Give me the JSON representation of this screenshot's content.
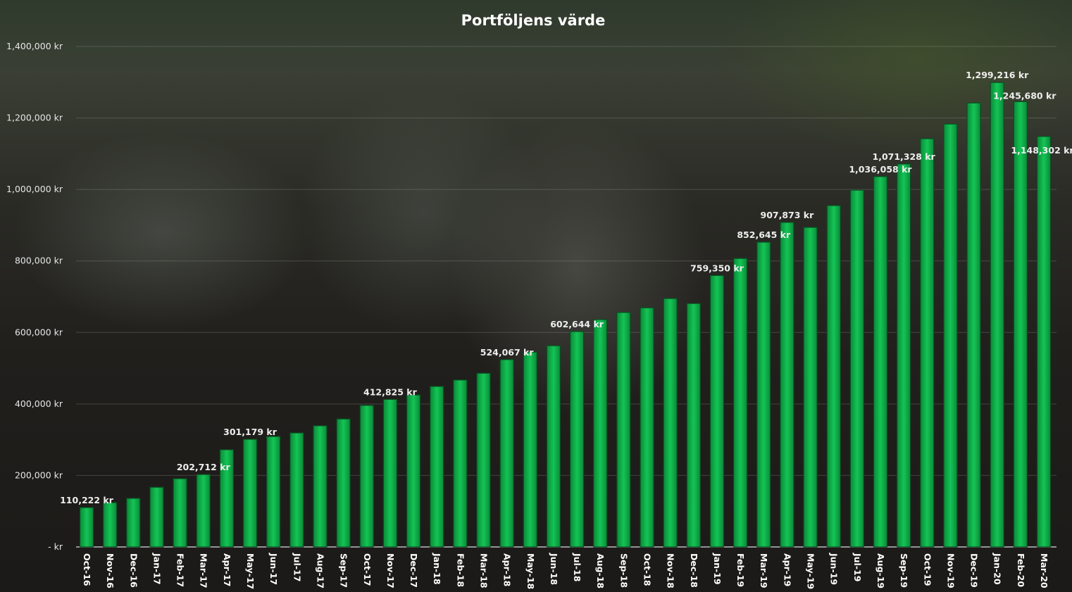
{
  "chart_data": {
    "type": "bar",
    "title": "Portföljens värde",
    "xlabel": "",
    "ylabel": "",
    "ylim": [
      0,
      1400000
    ],
    "yticks": [
      0,
      200000,
      400000,
      600000,
      800000,
      1000000,
      1200000,
      1400000
    ],
    "ytick_labels": [
      "- kr",
      "200,000 kr",
      "400,000 kr",
      "600,000 kr",
      "800,000 kr",
      "1,000,000 kr",
      "1,200,000 kr",
      "1,400,000 kr"
    ],
    "grid": true,
    "bar_color": "#0fb04a",
    "categories": [
      "Oct-16",
      "Nov-16",
      "Dec-16",
      "Jan-17",
      "Feb-17",
      "Mar-17",
      "Apr-17",
      "May-17",
      "Jun-17",
      "Jul-17",
      "Aug-17",
      "Sep-17",
      "Oct-17",
      "Nov-17",
      "Dec-17",
      "Jan-18",
      "Feb-18",
      "Mar-18",
      "Apr-18",
      "May-18",
      "Jun-18",
      "Jul-18",
      "Aug-18",
      "Sep-18",
      "Oct-18",
      "Nov-18",
      "Dec-18",
      "Jan-19",
      "Feb-19",
      "Mar-19",
      "Apr-19",
      "May-19",
      "Jun-19",
      "Jul-19",
      "Aug-19",
      "Sep-19",
      "Oct-19",
      "Nov-19",
      "Dec-19",
      "Jan-20",
      "Feb-20",
      "Mar-20"
    ],
    "values": [
      110222,
      124000,
      136000,
      167000,
      191000,
      202712,
      272000,
      301179,
      309000,
      319000,
      339000,
      358000,
      396000,
      412825,
      425000,
      449000,
      467000,
      486000,
      524067,
      545000,
      563000,
      602644,
      636000,
      656000,
      669000,
      695000,
      681000,
      759350,
      807000,
      852645,
      907873,
      894000,
      955000,
      998000,
      1036058,
      1071328,
      1142000,
      1183000,
      1242000,
      1299216,
      1245680,
      1148302
    ],
    "data_labels": {
      "0": "110,222 kr",
      "5": "202,712 kr",
      "7": "301,179 kr",
      "13": "412,825 kr",
      "18": "524,067 kr",
      "21": "602,644 kr",
      "27": "759,350 kr",
      "29": "852,645 kr",
      "30": "907,873 kr",
      "34": "1,036,058 kr",
      "35": "1,071,328 kr",
      "39": "1,299,216 kr",
      "40": "1,245,680 kr",
      "41": "1,148,302 kr"
    }
  }
}
